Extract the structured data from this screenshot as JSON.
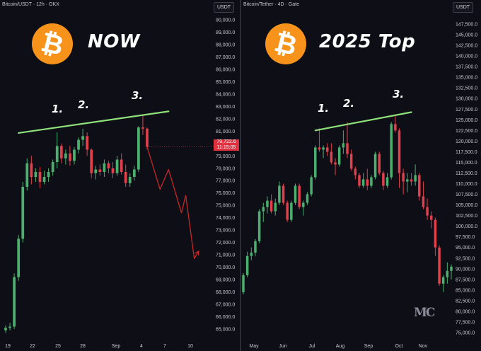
{
  "left_panel": {
    "header": "Bitcoin/USDT · 12h · OKX",
    "currency_button": "USDT",
    "title": "NOW",
    "logo_glyph": "₿",
    "peak_labels": [
      "1.",
      "2.",
      "3."
    ],
    "price_tag": {
      "price": "79,722.6",
      "time": "11:15:05"
    }
  },
  "right_panel": {
    "header": "Bitcoin/Tether · 4D · Gate",
    "currency_button": "USDT",
    "title": "2025 Top",
    "logo_glyph": "₿",
    "peak_labels": [
      "1.",
      "2.",
      "3."
    ],
    "watermark": "MC"
  },
  "colors": {
    "up": "#4caf6e",
    "down": "#e0404c",
    "trendline": "#8ee07a",
    "projection": "#c62828",
    "bitcoin_orange": "#f7931a",
    "background": "#0d0e16"
  },
  "chart_data": [
    {
      "type": "candlestick",
      "title": "NOW",
      "symbol": "Bitcoin/USDT",
      "interval": "12h",
      "exchange": "OKX",
      "ylim": [
        63500,
        91000
      ],
      "y_ticks": [
        65000,
        66000,
        67000,
        68000,
        69000,
        70000,
        71000,
        72000,
        73000,
        74000,
        75000,
        76000,
        77000,
        78000,
        79000,
        80000,
        81000,
        82000,
        83000,
        84000,
        85000,
        86000,
        87000,
        88000,
        89000,
        90000
      ],
      "x_ticks": [
        "19",
        "22",
        "25",
        "28",
        "Sep",
        "4",
        "7",
        "10"
      ],
      "candles": [
        [
          64900,
          65300,
          64700,
          65100
        ],
        [
          65100,
          65500,
          64900,
          65200
        ],
        [
          65200,
          69500,
          65000,
          69200
        ],
        [
          69200,
          72600,
          68900,
          72300
        ],
        [
          72300,
          76900,
          72000,
          76500
        ],
        [
          76500,
          78800,
          76200,
          78400
        ],
        [
          78400,
          79000,
          76700,
          77300
        ],
        [
          77300,
          78000,
          76900,
          77700
        ],
        [
          77700,
          78100,
          76400,
          76900
        ],
        [
          76900,
          77800,
          76700,
          77300
        ],
        [
          77300,
          78000,
          76900,
          77700
        ],
        [
          77700,
          78700,
          77400,
          78500
        ],
        [
          78500,
          80900,
          78000,
          79800
        ],
        [
          79800,
          80000,
          78400,
          78800
        ],
        [
          78800,
          79500,
          78300,
          79200
        ],
        [
          79200,
          79800,
          78200,
          78600
        ],
        [
          78600,
          79700,
          78300,
          79500
        ],
        [
          79500,
          80500,
          79200,
          80300
        ],
        [
          80300,
          81200,
          79800,
          80600
        ],
        [
          80600,
          80900,
          79000,
          79500
        ],
        [
          79500,
          79600,
          77200,
          77600
        ],
        [
          77600,
          78200,
          77100,
          77900
        ],
        [
          77900,
          78300,
          77400,
          77700
        ],
        [
          77700,
          78700,
          77300,
          78400
        ],
        [
          78400,
          78600,
          77600,
          78000
        ],
        [
          78000,
          78500,
          77200,
          77600
        ],
        [
          77600,
          79000,
          77400,
          78700
        ],
        [
          78700,
          79200,
          77500,
          77700
        ],
        [
          77700,
          78300,
          76500,
          76800
        ],
        [
          76800,
          77600,
          76500,
          77300
        ],
        [
          77300,
          78200,
          77000,
          77900
        ],
        [
          77900,
          81400,
          77700,
          81300
        ],
        [
          81300,
          82300,
          80700,
          81200
        ],
        [
          81200,
          81300,
          79500,
          79722.6
        ]
      ],
      "resistance_line": {
        "from_candle": 3,
        "from_price": 80850,
        "to_candle": 38,
        "to_price": 82600
      },
      "projection_path": [
        [
          33,
          79722.6
        ],
        [
          36,
          76300
        ],
        [
          38,
          77900
        ],
        [
          41,
          74400
        ],
        [
          42,
          75800
        ],
        [
          44,
          70700
        ],
        [
          45,
          71300
        ]
      ],
      "peaks": [
        {
          "label": "1.",
          "candle": 12
        },
        {
          "label": "2.",
          "candle": 18
        },
        {
          "label": "3.",
          "candle": 32
        }
      ],
      "last_price": 79722.6,
      "countdown": "11:15:05"
    },
    {
      "type": "candlestick",
      "title": "2025 Top",
      "symbol": "Bitcoin/Tether",
      "interval": "4D",
      "exchange": "Gate",
      "ylim": [
        73500,
        149000
      ],
      "y_ticks": [
        75000,
        77500,
        80000,
        82500,
        85000,
        87500,
        90000,
        92500,
        95000,
        97500,
        100000,
        102500,
        105000,
        107500,
        110000,
        112500,
        115000,
        117500,
        120000,
        122500,
        125000,
        127500,
        130000,
        132500,
        135000,
        137500,
        140000,
        142500,
        145000,
        147500
      ],
      "x_ticks": [
        "May",
        "Jun",
        "Jul",
        "Aug",
        "Sep",
        "Oct",
        "Nov"
      ],
      "candles": [
        [
          84500,
          89000,
          84000,
          88500
        ],
        [
          88500,
          94000,
          88000,
          93000
        ],
        [
          93000,
          95000,
          92000,
          93800
        ],
        [
          93800,
          97000,
          93000,
          96500
        ],
        [
          96500,
          104000,
          96000,
          103500
        ],
        [
          103500,
          105500,
          101000,
          104500
        ],
        [
          104500,
          107000,
          103000,
          106000
        ],
        [
          106000,
          107500,
          103000,
          103500
        ],
        [
          103500,
          106500,
          102500,
          105500
        ],
        [
          105500,
          110500,
          105000,
          109500
        ],
        [
          109500,
          110000,
          105000,
          105500
        ],
        [
          105500,
          106000,
          101000,
          101500
        ],
        [
          101500,
          106000,
          101000,
          105500
        ],
        [
          105500,
          110000,
          105000,
          109500
        ],
        [
          109500,
          110000,
          104000,
          104500
        ],
        [
          104500,
          106000,
          102500,
          105500
        ],
        [
          105500,
          108000,
          105000,
          107500
        ],
        [
          107500,
          112000,
          107000,
          111500
        ],
        [
          111500,
          119000,
          111000,
          118500
        ],
        [
          118500,
          123000,
          117500,
          118000
        ],
        [
          118000,
          119000,
          116000,
          118500
        ],
        [
          118500,
          119500,
          116500,
          117500
        ],
        [
          117500,
          119500,
          114500,
          115000
        ],
        [
          115000,
          116000,
          112000,
          114500
        ],
        [
          114500,
          119000,
          114000,
          118500
        ],
        [
          118500,
          122500,
          117000,
          119500
        ],
        [
          119500,
          124500,
          116000,
          117000
        ],
        [
          117000,
          118000,
          113000,
          113500
        ],
        [
          113500,
          114000,
          111000,
          112000
        ],
        [
          112000,
          112500,
          109000,
          109500
        ],
        [
          109500,
          112500,
          109000,
          111000
        ],
        [
          111000,
          113500,
          108500,
          109500
        ],
        [
          109500,
          112000,
          109000,
          111500
        ],
        [
          111500,
          117500,
          111000,
          117000
        ],
        [
          117000,
          117500,
          112000,
          112500
        ],
        [
          112500,
          113000,
          108500,
          109500
        ],
        [
          109500,
          112500,
          109000,
          111500
        ],
        [
          111500,
          124500,
          111000,
          124000
        ],
        [
          124000,
          126000,
          122000,
          122500
        ],
        [
          122500,
          123000,
          109000,
          112500
        ],
        [
          112500,
          113500,
          107500,
          110500
        ],
        [
          110500,
          112500,
          108000,
          111000
        ],
        [
          111000,
          112500,
          109500,
          110500
        ],
        [
          110500,
          114500,
          109500,
          112000
        ],
        [
          112000,
          112500,
          106000,
          107000
        ],
        [
          107000,
          110500,
          104000,
          104500
        ],
        [
          104500,
          106500,
          101500,
          102500
        ],
        [
          102500,
          103500,
          99500,
          101500
        ],
        [
          101500,
          102000,
          93000,
          95000
        ],
        [
          95000,
          95500,
          86000,
          86500
        ],
        [
          86500,
          88500,
          84500,
          88000
        ],
        [
          88000,
          91500,
          86500,
          89500
        ],
        [
          89500,
          91000,
          87500,
          90500
        ]
      ],
      "resistance_line": {
        "from_candle": 18,
        "from_price": 122500,
        "to_candle": 42,
        "to_price": 126800
      },
      "peaks": [
        {
          "label": "1.",
          "candle": 18
        },
        {
          "label": "2.",
          "candle": 26
        },
        {
          "label": "3.",
          "candle": 37
        }
      ]
    }
  ]
}
